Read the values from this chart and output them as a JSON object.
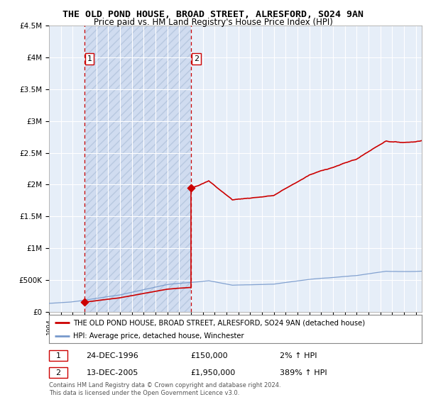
{
  "title": "THE OLD POND HOUSE, BROAD STREET, ALRESFORD, SO24 9AN",
  "subtitle": "Price paid vs. HM Land Registry's House Price Index (HPI)",
  "hpi_label": "HPI: Average price, detached house, Winchester",
  "property_label": "THE OLD POND HOUSE, BROAD STREET, ALRESFORD, SO24 9AN (detached house)",
  "purchase1_date": "24-DEC-1996",
  "purchase1_price": 150000,
  "purchase1_hpi_text": "2% ↑ HPI",
  "purchase1_x": 1996.97,
  "purchase2_date": "13-DEC-2005",
  "purchase2_price": 1950000,
  "purchase2_hpi_text": "389% ↑ HPI",
  "purchase2_x": 2005.97,
  "ylim_min": 0,
  "ylim_max": 4500000,
  "xlim_min": 1994,
  "xlim_max": 2025.5,
  "yticks": [
    0,
    500000,
    1000000,
    1500000,
    2000000,
    2500000,
    3000000,
    3500000,
    4000000,
    4500000
  ],
  "ytick_labels": [
    "£0",
    "£500K",
    "£1M",
    "£1.5M",
    "£2M",
    "£2.5M",
    "£3M",
    "£3.5M",
    "£4M",
    "£4.5M"
  ],
  "background_color": "#ffffff",
  "plot_bg_color": "#e6eef8",
  "grid_color": "#ffffff",
  "line_color_property": "#cc0000",
  "line_color_hpi": "#7799cc",
  "vline_color": "#cc0000",
  "marker_color": "#cc0000",
  "footnote": "Contains HM Land Registry data © Crown copyright and database right 2024.\nThis data is licensed under the Open Government Licence v3.0."
}
